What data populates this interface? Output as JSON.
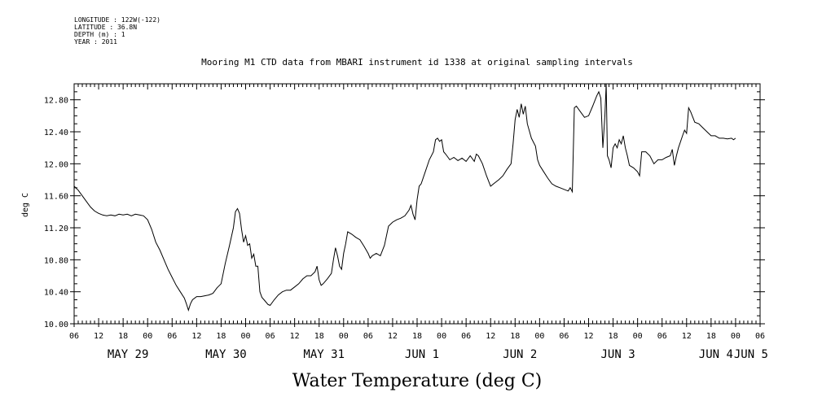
{
  "meta": {
    "longitude": "LONGITUDE : 122W(-122)",
    "latitude": "LATITUDE : 36.8N",
    "depth": "DEPTH (m) : 1",
    "year": "YEAR : 2011"
  },
  "chart_data": {
    "type": "line",
    "title": "Mooring M1 CTD data from MBARI instrument id 1338 at original sampling intervals",
    "xlabel": "Water Temperature (deg C)",
    "ylabel": "deg C",
    "ylim": [
      10.0,
      13.0
    ],
    "y_ticks": [
      "10.00",
      "10.40",
      "10.80",
      "11.20",
      "11.60",
      "12.00",
      "12.40",
      "12.80"
    ],
    "x_range_hours": [
      0,
      168
    ],
    "x_hour_labels": [
      "06",
      "12",
      "18",
      "00",
      "06",
      "12",
      "18",
      "00",
      "06",
      "12",
      "18",
      "00",
      "06",
      "12",
      "18",
      "00",
      "06",
      "12",
      "18",
      "00",
      "06",
      "12",
      "18",
      "00",
      "06",
      "12",
      "18",
      "00",
      "06"
    ],
    "day_labels": [
      "MAY 29",
      "MAY 30",
      "MAY 31",
      "JUN  1",
      "JUN  2",
      "JUN  3",
      "JUN  4",
      "JUN  5"
    ],
    "grid": false,
    "x_units": "hours since 2011-05-29 06:00",
    "series": [
      {
        "color": "#000000",
        "points": [
          [
            0,
            11.72
          ],
          [
            1,
            11.67
          ],
          [
            2,
            11.6
          ],
          [
            3,
            11.53
          ],
          [
            4,
            11.46
          ],
          [
            5,
            11.41
          ],
          [
            6,
            11.38
          ],
          [
            7,
            11.36
          ],
          [
            8,
            11.35
          ],
          [
            9,
            11.36
          ],
          [
            10,
            11.35
          ],
          [
            11,
            11.37
          ],
          [
            12,
            11.36
          ],
          [
            13,
            11.37
          ],
          [
            14,
            11.35
          ],
          [
            15,
            11.37
          ],
          [
            16,
            11.36
          ],
          [
            17,
            11.35
          ],
          [
            18,
            11.3
          ],
          [
            19,
            11.18
          ],
          [
            20,
            11.02
          ],
          [
            21,
            10.92
          ],
          [
            22,
            10.8
          ],
          [
            23,
            10.68
          ],
          [
            24,
            10.58
          ],
          [
            25,
            10.48
          ],
          [
            26,
            10.4
          ],
          [
            27,
            10.32
          ],
          [
            27.5,
            10.25
          ],
          [
            28,
            10.17
          ],
          [
            28.5,
            10.25
          ],
          [
            29,
            10.3
          ],
          [
            30,
            10.34
          ],
          [
            31,
            10.34
          ],
          [
            32,
            10.35
          ],
          [
            33,
            10.36
          ],
          [
            34,
            10.38
          ],
          [
            35,
            10.45
          ],
          [
            36,
            10.5
          ],
          [
            37,
            10.75
          ],
          [
            38,
            10.97
          ],
          [
            39,
            11.2
          ],
          [
            39.5,
            11.4
          ],
          [
            40,
            11.44
          ],
          [
            40.5,
            11.38
          ],
          [
            41,
            11.18
          ],
          [
            41.5,
            11.02
          ],
          [
            42,
            11.1
          ],
          [
            42.5,
            10.98
          ],
          [
            43,
            11.0
          ],
          [
            43.5,
            10.82
          ],
          [
            44,
            10.87
          ],
          [
            44.5,
            10.72
          ],
          [
            45,
            10.72
          ],
          [
            45.5,
            10.4
          ],
          [
            46,
            10.33
          ],
          [
            46.5,
            10.3
          ],
          [
            47,
            10.27
          ],
          [
            47.5,
            10.24
          ],
          [
            48,
            10.23
          ],
          [
            49,
            10.3
          ],
          [
            50,
            10.36
          ],
          [
            51,
            10.4
          ],
          [
            52,
            10.42
          ],
          [
            53,
            10.42
          ],
          [
            54,
            10.46
          ],
          [
            55,
            10.5
          ],
          [
            56,
            10.56
          ],
          [
            57,
            10.6
          ],
          [
            58,
            10.6
          ],
          [
            59,
            10.65
          ],
          [
            59.5,
            10.72
          ],
          [
            60,
            10.55
          ],
          [
            60.5,
            10.48
          ],
          [
            61,
            10.5
          ],
          [
            62,
            10.56
          ],
          [
            63,
            10.63
          ],
          [
            63.5,
            10.8
          ],
          [
            64,
            10.95
          ],
          [
            64.5,
            10.85
          ],
          [
            65,
            10.72
          ],
          [
            65.5,
            10.68
          ],
          [
            66,
            10.88
          ],
          [
            66.5,
            11.0
          ],
          [
            67,
            11.15
          ],
          [
            68,
            11.12
          ],
          [
            69,
            11.08
          ],
          [
            70,
            11.05
          ],
          [
            71,
            10.97
          ],
          [
            72,
            10.88
          ],
          [
            72.5,
            10.82
          ],
          [
            73,
            10.85
          ],
          [
            74,
            10.88
          ],
          [
            75,
            10.85
          ],
          [
            76,
            10.98
          ],
          [
            77,
            11.22
          ],
          [
            78,
            11.27
          ],
          [
            79,
            11.3
          ],
          [
            80,
            11.32
          ],
          [
            81,
            11.35
          ],
          [
            82,
            11.42
          ],
          [
            82.5,
            11.48
          ],
          [
            83,
            11.37
          ],
          [
            83.5,
            11.3
          ],
          [
            84,
            11.55
          ],
          [
            84.5,
            11.72
          ],
          [
            85,
            11.75
          ],
          [
            86,
            11.9
          ],
          [
            87,
            12.05
          ],
          [
            88,
            12.15
          ],
          [
            88.5,
            12.3
          ],
          [
            89,
            12.32
          ],
          [
            89.5,
            12.28
          ],
          [
            90,
            12.3
          ],
          [
            90.5,
            12.15
          ],
          [
            91,
            12.12
          ],
          [
            92,
            12.05
          ],
          [
            93,
            12.08
          ],
          [
            94,
            12.04
          ],
          [
            95,
            12.07
          ],
          [
            96,
            12.03
          ],
          [
            97,
            12.1
          ],
          [
            98,
            12.03
          ],
          [
            98.5,
            12.12
          ],
          [
            99,
            12.1
          ],
          [
            100,
            12.0
          ],
          [
            101,
            11.85
          ],
          [
            102,
            11.72
          ],
          [
            103,
            11.76
          ],
          [
            104,
            11.8
          ],
          [
            105,
            11.85
          ],
          [
            106,
            11.93
          ],
          [
            107,
            12.0
          ],
          [
            107.5,
            12.25
          ],
          [
            108,
            12.55
          ],
          [
            108.5,
            12.68
          ],
          [
            109,
            12.58
          ],
          [
            109.5,
            12.75
          ],
          [
            110,
            12.62
          ],
          [
            110.5,
            12.72
          ],
          [
            111,
            12.5
          ],
          [
            112,
            12.32
          ],
          [
            113,
            12.22
          ],
          [
            113.5,
            12.05
          ],
          [
            114,
            11.98
          ],
          [
            115,
            11.9
          ],
          [
            116,
            11.82
          ],
          [
            117,
            11.75
          ],
          [
            118,
            11.72
          ],
          [
            119,
            11.7
          ],
          [
            120,
            11.68
          ],
          [
            121,
            11.66
          ],
          [
            121.5,
            11.7
          ],
          [
            122,
            11.65
          ],
          [
            122.5,
            12.7
          ],
          [
            123,
            12.72
          ],
          [
            124,
            12.65
          ],
          [
            125,
            12.58
          ],
          [
            126,
            12.6
          ],
          [
            127,
            12.72
          ],
          [
            128,
            12.85
          ],
          [
            128.5,
            12.9
          ],
          [
            129,
            12.82
          ],
          [
            129.5,
            12.2
          ],
          [
            130,
            12.6
          ],
          [
            130.3,
            13.0
          ],
          [
            130.6,
            12.1
          ],
          [
            131,
            12.05
          ],
          [
            131.5,
            11.95
          ],
          [
            132,
            12.2
          ],
          [
            132.5,
            12.25
          ],
          [
            133,
            12.2
          ],
          [
            133.5,
            12.3
          ],
          [
            134,
            12.25
          ],
          [
            134.5,
            12.35
          ],
          [
            135,
            12.2
          ],
          [
            135.5,
            12.1
          ],
          [
            136,
            11.98
          ],
          [
            137,
            11.95
          ],
          [
            138,
            11.9
          ],
          [
            138.5,
            11.85
          ],
          [
            139,
            12.15
          ],
          [
            140,
            12.15
          ],
          [
            141,
            12.1
          ],
          [
            142,
            12.0
          ],
          [
            143,
            12.05
          ],
          [
            144,
            12.05
          ],
          [
            145,
            12.08
          ],
          [
            146,
            12.1
          ],
          [
            146.5,
            12.18
          ],
          [
            147,
            11.98
          ],
          [
            147.5,
            12.1
          ],
          [
            148,
            12.2
          ],
          [
            149,
            12.35
          ],
          [
            149.5,
            12.42
          ],
          [
            150,
            12.38
          ],
          [
            150.5,
            12.7
          ],
          [
            151,
            12.65
          ],
          [
            152,
            12.52
          ],
          [
            153,
            12.5
          ],
          [
            154,
            12.45
          ],
          [
            155,
            12.4
          ],
          [
            156,
            12.35
          ],
          [
            157,
            12.35
          ],
          [
            158,
            12.32
          ],
          [
            159,
            12.32
          ],
          [
            160,
            12.31
          ],
          [
            161,
            12.32
          ],
          [
            161.5,
            12.3
          ],
          [
            162,
            12.32
          ]
        ]
      }
    ]
  }
}
